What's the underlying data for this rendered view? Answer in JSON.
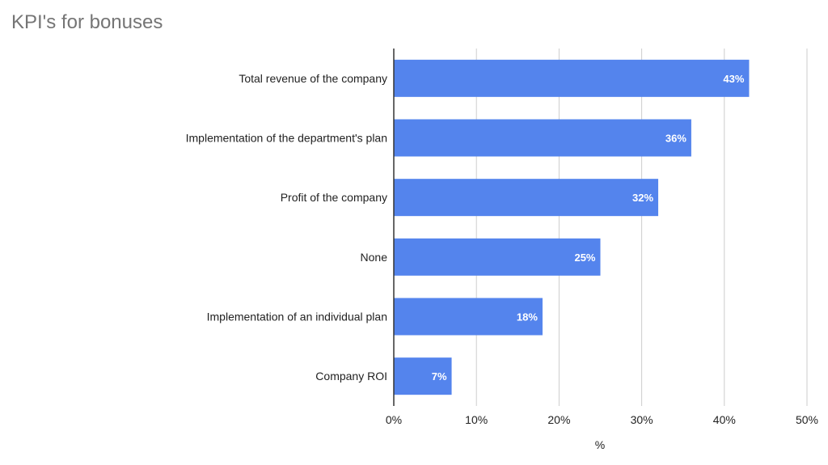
{
  "chart_data": {
    "type": "bar",
    "orientation": "horizontal",
    "title": "KPI's for bonuses",
    "xlabel": "%",
    "ylabel": "",
    "categories": [
      "Total revenue of the company",
      "Implementation of the department's plan",
      "Profit of the company",
      "None",
      "Implementation of an individual plan",
      "Company ROI"
    ],
    "values": [
      43,
      36,
      32,
      25,
      18,
      7
    ],
    "data_labels": [
      "43%",
      "36%",
      "32%",
      "25%",
      "18%",
      "7%"
    ],
    "xlim": [
      0,
      50
    ],
    "x_ticks": [
      "0%",
      "10%",
      "20%",
      "30%",
      "40%",
      "50%"
    ],
    "grid": "vertical",
    "legend": "none",
    "bar_color": "#5484ED",
    "grid_color": "#cccccc",
    "axis_color": "#333333"
  }
}
